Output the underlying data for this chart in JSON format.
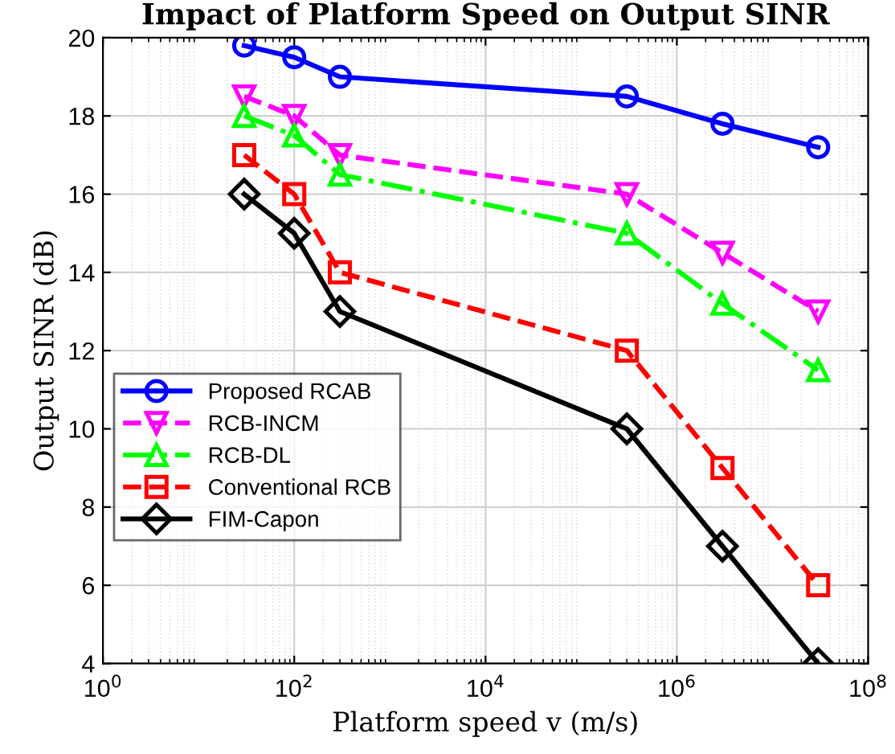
{
  "chart_data": {
    "type": "line",
    "title": "Impact of Platform Speed on Output SINR",
    "xlabel": "Platform speed v (m/s)",
    "ylabel": "Output SINR (dB)",
    "x": [
      30,
      100,
      300,
      300000,
      3000000,
      30000000
    ],
    "series": [
      {
        "name": "Proposed RCAB",
        "color": "#0000ff",
        "marker": "circle",
        "line_style": "solid",
        "values": [
          19.8,
          19.5,
          19.0,
          18.5,
          17.8,
          17.2
        ]
      },
      {
        "name": "RCB-INCM",
        "color": "#ff00ff",
        "marker": "triangle_down",
        "line_style": "dashed",
        "values": [
          18.5,
          18.0,
          17.0,
          16.0,
          14.5,
          13.0
        ]
      },
      {
        "name": "RCB-DL",
        "color": "#00ff00",
        "marker": "triangle",
        "line_style": "dashdot",
        "values": [
          18.0,
          17.5,
          16.5,
          15.0,
          13.2,
          11.5
        ]
      },
      {
        "name": "Conventional RCB",
        "color": "#ff0000",
        "marker": "square",
        "line_style": "dashed",
        "values": [
          17.0,
          16.0,
          14.0,
          12.0,
          9.0,
          6.0
        ]
      },
      {
        "name": "FIM-Capon",
        "color": "#000000",
        "marker": "diamond",
        "line_style": "solid",
        "values": [
          16.0,
          15.0,
          13.0,
          10.0,
          7.0,
          4.0
        ]
      }
    ],
    "log": "x",
    "xlim": [
      1,
      100000000
    ],
    "ylim": [
      4,
      20
    ],
    "xticks": [
      {
        "value": 1,
        "label": "10$^{0}$"
      },
      {
        "value": 100,
        "label": "10$^{2}$"
      },
      {
        "value": 10000,
        "label": "10$^{4}$"
      },
      {
        "value": 1000000,
        "label": "10$^{6}$"
      },
      {
        "value": 100000000,
        "label": "10$^{8}$"
      }
    ],
    "yticks": [
      4,
      6,
      8,
      10,
      12,
      14,
      16,
      18,
      20
    ],
    "grid": true,
    "legend": "left"
  }
}
